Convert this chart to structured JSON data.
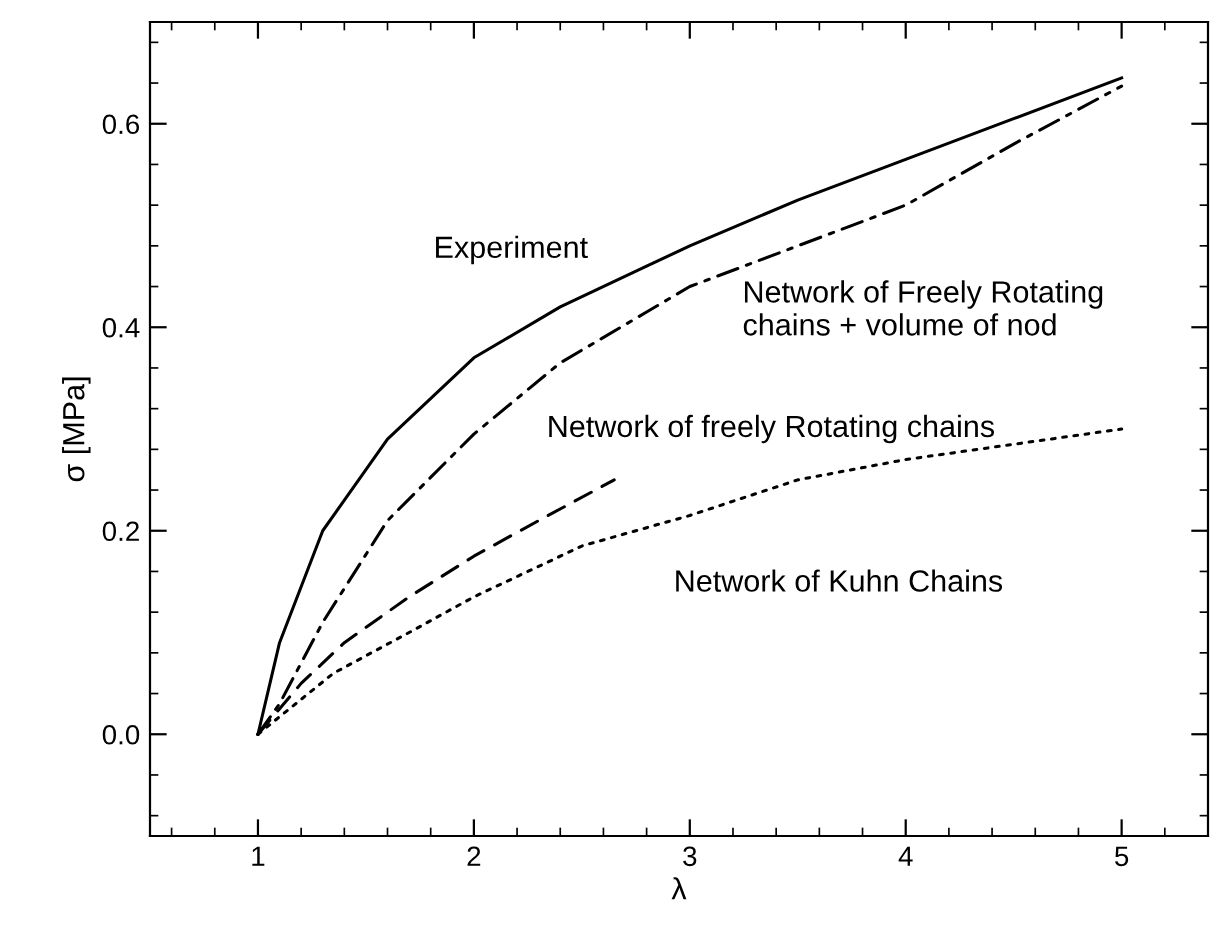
{
  "chart_data": {
    "type": "line",
    "xlabel": "λ",
    "ylabel": "σ [MPa]",
    "xlim": [
      0.5,
      5.4
    ],
    "ylim": [
      -0.1,
      0.7
    ],
    "xticks": [
      1,
      2,
      3,
      4,
      5
    ],
    "yticks": [
      {
        "value": 0,
        "label": "0.0"
      },
      0.2,
      0.4,
      0.6
    ],
    "grid": false,
    "legend": false,
    "marker": "none",
    "series": [
      {
        "color": "#000000",
        "line_style": "solid",
        "x": [
          1,
          1.1,
          1.3,
          1.6,
          2,
          2.4,
          2.8,
          3,
          3.5,
          4,
          4.5,
          5
        ],
        "values": [
          0,
          0.09,
          0.2,
          0.29,
          0.37,
          0.42,
          0.46,
          0.48,
          0.525,
          0.565,
          0.605,
          0.645
        ]
      },
      {
        "color": "#000000",
        "line_style": "dashdot",
        "x": [
          1,
          1.1,
          1.3,
          1.6,
          2,
          2.4,
          2.8,
          3,
          3.5,
          4,
          4.5,
          5
        ],
        "values": [
          0,
          0.03,
          0.11,
          0.21,
          0.295,
          0.365,
          0.415,
          0.44,
          0.48,
          0.52,
          0.58,
          0.637
        ]
      },
      {
        "color": "#000000",
        "line_style": "dashed",
        "x": [
          1,
          1.2,
          1.4,
          1.7,
          2,
          2.3,
          2.65
        ],
        "values": [
          0,
          0.05,
          0.09,
          0.135,
          0.175,
          0.21,
          0.25
        ]
      },
      {
        "color": "#000000",
        "line_style": "dotted",
        "x": [
          1,
          1.35,
          1.7,
          2,
          2.5,
          3,
          3.5,
          4,
          4.5,
          5
        ],
        "values": [
          0,
          0.06,
          0.1,
          0.135,
          0.185,
          0.215,
          0.25,
          0.27,
          0.285,
          0.3
        ]
      }
    ],
    "annotations": [
      "Experiment",
      "Network of Freely Rotating\nchains + volume of nod",
      "Network of freely Rotating chains",
      "Network of Kuhn Chains"
    ]
  }
}
